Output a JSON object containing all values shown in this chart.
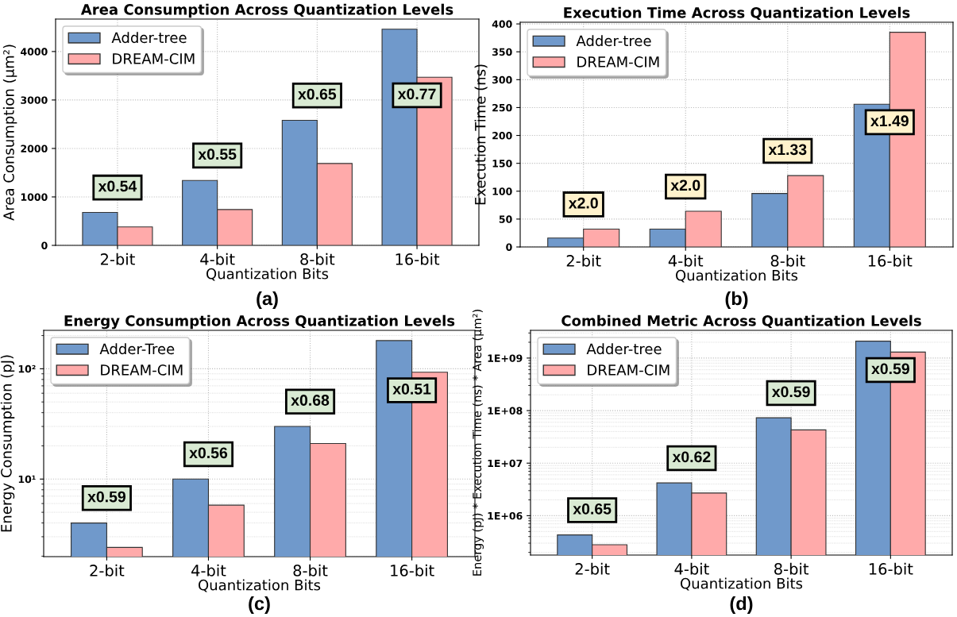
{
  "chart_data": [
    {
      "type": "bar",
      "title": "Area Consumption Across Quantization Levels",
      "xlabel": "Quantization Bits",
      "ylabel": "Area Consumption (µm²)",
      "categories": [
        "2-bit",
        "4-bit",
        "8-bit",
        "16-bit"
      ],
      "series": [
        {
          "name": "Adder-tree",
          "color": "#7099cb",
          "values": [
            680,
            1340,
            2580,
            4460
          ]
        },
        {
          "name": "DREAM-CIM",
          "color": "#ffaaaa",
          "values": [
            380,
            740,
            1690,
            3470
          ]
        }
      ],
      "ylim": [
        0,
        4670
      ],
      "yticks": [
        0,
        1000,
        2000,
        3000,
        4000
      ],
      "grid": true,
      "legend": "top left",
      "annotations": [
        "x0.54",
        "x0.55",
        "x0.65",
        "x0.77",
        "(a)"
      ]
    },
    {
      "type": "bar",
      "title": "Execution Time Across Quantization Levels",
      "xlabel": "Quantization Bits",
      "ylabel": "Execution Time (ns)",
      "categories": [
        "2-bit",
        "4-bit",
        "8-bit",
        "16-bit"
      ],
      "series": [
        {
          "name": "Adder-tree",
          "color": "#7099cb",
          "values": [
            16,
            32,
            96,
            256
          ]
        },
        {
          "name": "DREAM-CIM",
          "color": "#ffaaaa",
          "values": [
            32,
            64,
            128,
            385
          ]
        }
      ],
      "ylim": [
        0,
        403
      ],
      "yticks": [
        0,
        50,
        100,
        150,
        200,
        250,
        300,
        350,
        400
      ],
      "grid": true,
      "legend": "top left",
      "annotations": [
        "x2.0",
        "x2.0",
        "x1.33",
        "x1.49",
        "(b)"
      ]
    },
    {
      "type": "bar",
      "title": "Energy Consumption Across Quantization Levels",
      "xlabel": "Quantization Bits",
      "ylabel": "Energy Consumption (pJ)",
      "categories": [
        "2-bit",
        "4-bit",
        "8-bit",
        "16-bit"
      ],
      "series": [
        {
          "name": "Adder-Tree",
          "color": "#7099cb",
          "values": [
            4.0,
            10,
            30,
            180
          ]
        },
        {
          "name": "DREAM-CIM",
          "color": "#ffaaaa",
          "values": [
            2.4,
            5.8,
            21,
            93
          ]
        }
      ],
      "log": true,
      "ylim": [
        1.98,
        223
      ],
      "yticks": [
        {
          "value": 10,
          "label": "10¹"
        },
        {
          "value": 100,
          "label": "10²"
        }
      ],
      "grid": true,
      "legend": "top left",
      "annotations": [
        "x0.59",
        "x0.56",
        "x0.68",
        "x0.51",
        "(c)"
      ]
    },
    {
      "type": "bar",
      "title": "Combined Metric Across Quantization Levels",
      "xlabel": "Quantization Bits",
      "ylabel": "Energy (pJ) * Execution Time (ns) * Area (µm²)",
      "categories": [
        "2-bit",
        "4-bit",
        "8-bit",
        "16-bit"
      ],
      "series": [
        {
          "name": "Adder-tree",
          "color": "#7099cb",
          "values": [
            430000,
            4200000,
            73000000,
            2100000000
          ]
        },
        {
          "name": "DREAM-CIM",
          "color": "#ffaaaa",
          "values": [
            280000,
            2700000,
            43000000,
            1300000000
          ]
        }
      ],
      "log": true,
      "ylim": [
        178000,
        3370000000
      ],
      "yticks": [
        {
          "value": 1000000,
          "label": "1E+06"
        },
        {
          "value": 10000000,
          "label": "1E+07"
        },
        {
          "value": 100000000,
          "label": "1E+08"
        },
        {
          "value": 1000000000,
          "label": "1E+09"
        }
      ],
      "grid": true,
      "legend": "top left",
      "annotations": [
        "x0.65",
        "x0.62",
        "x0.59",
        "x0.59",
        "(d)"
      ]
    }
  ]
}
